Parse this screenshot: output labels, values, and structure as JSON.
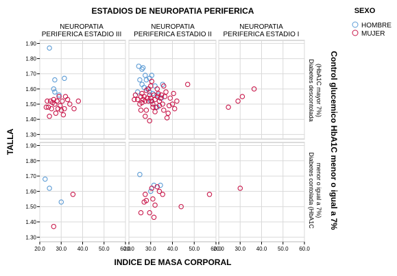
{
  "chart_data": {
    "type": "scatter",
    "title": "ESTADIOS DE NEUROPATIA PERIFERICA",
    "xlabel": "INDICE DE MASA CORPORAL",
    "ylabel": "TALLA",
    "row_facet_title": "Control glucemico HbA1C menor o igual a 7%",
    "xlim": [
      20,
      60
    ],
    "ylim": [
      1.27,
      1.92
    ],
    "x_ticks": [
      "20.0",
      "30.0",
      "40.0",
      "50.0",
      "60.0"
    ],
    "y_ticks": [
      "1.30",
      "1.40",
      "1.50",
      "1.60",
      "1.70",
      "1.80",
      "1.90"
    ],
    "grid": true,
    "legend": {
      "title": "SEXO",
      "position": "top-right",
      "items": [
        {
          "name": "HOMBRE",
          "color": "#5b9bd5"
        },
        {
          "name": "MUJER",
          "color": "#c8174a"
        }
      ]
    },
    "columns": [
      {
        "line1": "NEUROPATIA",
        "line2": "PERIFERICA ESTADIO III"
      },
      {
        "line1": "NEUROPATIA",
        "line2": "PERIFERICA ESTADIO II"
      },
      {
        "line1": "NEUROPATIA",
        "line2": "PERIFERICA ESTADIO I"
      }
    ],
    "rows": [
      {
        "line1": "Diabetes descontolada",
        "line2": "(HbA1C mayor 7%)"
      },
      {
        "line1": "Diabetes contolada (HbA1C",
        "line2": "menor o igual a 7%)"
      }
    ],
    "panels": [
      {
        "row": 0,
        "col": 0,
        "series": [
          {
            "name": "HOMBRE",
            "points": [
              [
                24.5,
                1.87
              ],
              [
                27.0,
                1.66
              ],
              [
                31.5,
                1.67
              ],
              [
                26.5,
                1.6
              ],
              [
                27.0,
                1.58
              ],
              [
                29.0,
                1.56
              ]
            ]
          },
          {
            "name": "MUJER",
            "points": [
              [
                24.0,
                1.48
              ],
              [
                25.0,
                1.52
              ],
              [
                24.5,
                1.42
              ],
              [
                25.5,
                1.47
              ],
              [
                26.5,
                1.53
              ],
              [
                27.0,
                1.5
              ],
              [
                27.5,
                1.44
              ],
              [
                28.0,
                1.52
              ],
              [
                28.5,
                1.47
              ],
              [
                29.0,
                1.55
              ],
              [
                29.5,
                1.49
              ],
              [
                30.0,
                1.46
              ],
              [
                30.5,
                1.52
              ],
              [
                31.0,
                1.43
              ],
              [
                31.5,
                1.47
              ],
              [
                32.0,
                1.55
              ],
              [
                33.0,
                1.53
              ],
              [
                34.0,
                1.5
              ],
              [
                36.0,
                1.47
              ],
              [
                38.0,
                1.52
              ],
              [
                23.5,
                1.52
              ],
              [
                23.0,
                1.48
              ],
              [
                26.0,
                1.51
              ]
            ]
          }
        ]
      },
      {
        "row": 0,
        "col": 1,
        "series": [
          {
            "name": "HOMBRE",
            "points": [
              [
                24.5,
                1.75
              ],
              [
                26.0,
                1.73
              ],
              [
                26.5,
                1.74
              ],
              [
                27.5,
                1.69
              ],
              [
                28.0,
                1.66
              ],
              [
                29.5,
                1.67
              ],
              [
                30.5,
                1.69
              ],
              [
                25.0,
                1.66
              ],
              [
                26.0,
                1.63
              ],
              [
                27.0,
                1.61
              ],
              [
                28.5,
                1.6
              ],
              [
                29.5,
                1.58
              ],
              [
                31.0,
                1.57
              ],
              [
                32.0,
                1.62
              ],
              [
                33.5,
                1.56
              ],
              [
                35.5,
                1.63
              ],
              [
                24.0,
                1.58
              ],
              [
                30.0,
                1.52
              ],
              [
                33.0,
                1.48
              ],
              [
                35.0,
                1.54
              ]
            ]
          },
          {
            "name": "MUJER",
            "points": [
              [
                23.0,
                1.56
              ],
              [
                24.0,
                1.53
              ],
              [
                25.0,
                1.5
              ],
              [
                25.5,
                1.55
              ],
              [
                26.0,
                1.57
              ],
              [
                26.5,
                1.53
              ],
              [
                27.0,
                1.55
              ],
              [
                27.5,
                1.52
              ],
              [
                28.0,
                1.59
              ],
              [
                28.5,
                1.54
              ],
              [
                29.0,
                1.52
              ],
              [
                29.5,
                1.56
              ],
              [
                30.0,
                1.54
              ],
              [
                30.5,
                1.65
              ],
              [
                31.0,
                1.5
              ],
              [
                31.5,
                1.56
              ],
              [
                32.0,
                1.53
              ],
              [
                32.5,
                1.48
              ],
              [
                33.0,
                1.55
              ],
              [
                33.5,
                1.57
              ],
              [
                34.0,
                1.52
              ],
              [
                34.5,
                1.54
              ],
              [
                35.0,
                1.56
              ],
              [
                35.5,
                1.5
              ],
              [
                36.0,
                1.62
              ],
              [
                36.5,
                1.55
              ],
              [
                37.0,
                1.58
              ],
              [
                38.0,
                1.44
              ],
              [
                39.0,
                1.54
              ],
              [
                40.0,
                1.5
              ],
              [
                41.0,
                1.47
              ],
              [
                42.0,
                1.52
              ],
              [
                47.0,
                1.63
              ],
              [
                22.5,
                1.53
              ],
              [
                25.5,
                1.46
              ],
              [
                27.5,
                1.42
              ],
              [
                29.5,
                1.39
              ],
              [
                31.0,
                1.48
              ],
              [
                37.5,
                1.41
              ],
              [
                29.0,
                1.6
              ],
              [
                33.0,
                1.6
              ],
              [
                30.5,
                1.52
              ],
              [
                34.0,
                1.49
              ],
              [
                26.0,
                1.51
              ],
              [
                38.5,
                1.49
              ],
              [
                40.5,
                1.57
              ],
              [
                32.0,
                1.45
              ],
              [
                36.0,
                1.46
              ],
              [
                28.0,
                1.46
              ],
              [
                30.0,
                1.62
              ]
            ]
          }
        ]
      },
      {
        "row": 0,
        "col": 2,
        "series": [
          {
            "name": "HOMBRE",
            "points": []
          },
          {
            "name": "MUJER",
            "points": [
              [
                24.5,
                1.48
              ],
              [
                29.0,
                1.52
              ],
              [
                31.0,
                1.55
              ],
              [
                36.5,
                1.6
              ]
            ]
          }
        ]
      },
      {
        "row": 1,
        "col": 0,
        "series": [
          {
            "name": "HOMBRE",
            "points": [
              [
                22.5,
                1.68
              ],
              [
                24.5,
                1.62
              ],
              [
                30.0,
                1.53
              ]
            ]
          },
          {
            "name": "MUJER",
            "points": [
              [
                35.5,
                1.58
              ],
              [
                26.5,
                1.37
              ]
            ]
          }
        ]
      },
      {
        "row": 1,
        "col": 1,
        "series": [
          {
            "name": "HOMBRE",
            "points": [
              [
                25.0,
                1.71
              ],
              [
                31.5,
                1.64
              ],
              [
                34.5,
                1.64
              ],
              [
                30.0,
                1.6
              ]
            ]
          },
          {
            "name": "MUJER",
            "points": [
              [
                27.0,
                1.53
              ],
              [
                27.5,
                1.58
              ],
              [
                28.0,
                1.54
              ],
              [
                30.5,
                1.62
              ],
              [
                31.0,
                1.55
              ],
              [
                32.0,
                1.51
              ],
              [
                33.0,
                1.63
              ],
              [
                34.0,
                1.6
              ],
              [
                35.5,
                1.58
              ],
              [
                44.0,
                1.5
              ],
              [
                57.0,
                1.58
              ],
              [
                25.5,
                1.46
              ],
              [
                29.5,
                1.46
              ],
              [
                31.5,
                1.43
              ]
            ]
          }
        ]
      },
      {
        "row": 1,
        "col": 2,
        "series": [
          {
            "name": "HOMBRE",
            "points": []
          },
          {
            "name": "MUJER",
            "points": [
              [
                30.0,
                1.62
              ]
            ]
          }
        ]
      }
    ]
  }
}
